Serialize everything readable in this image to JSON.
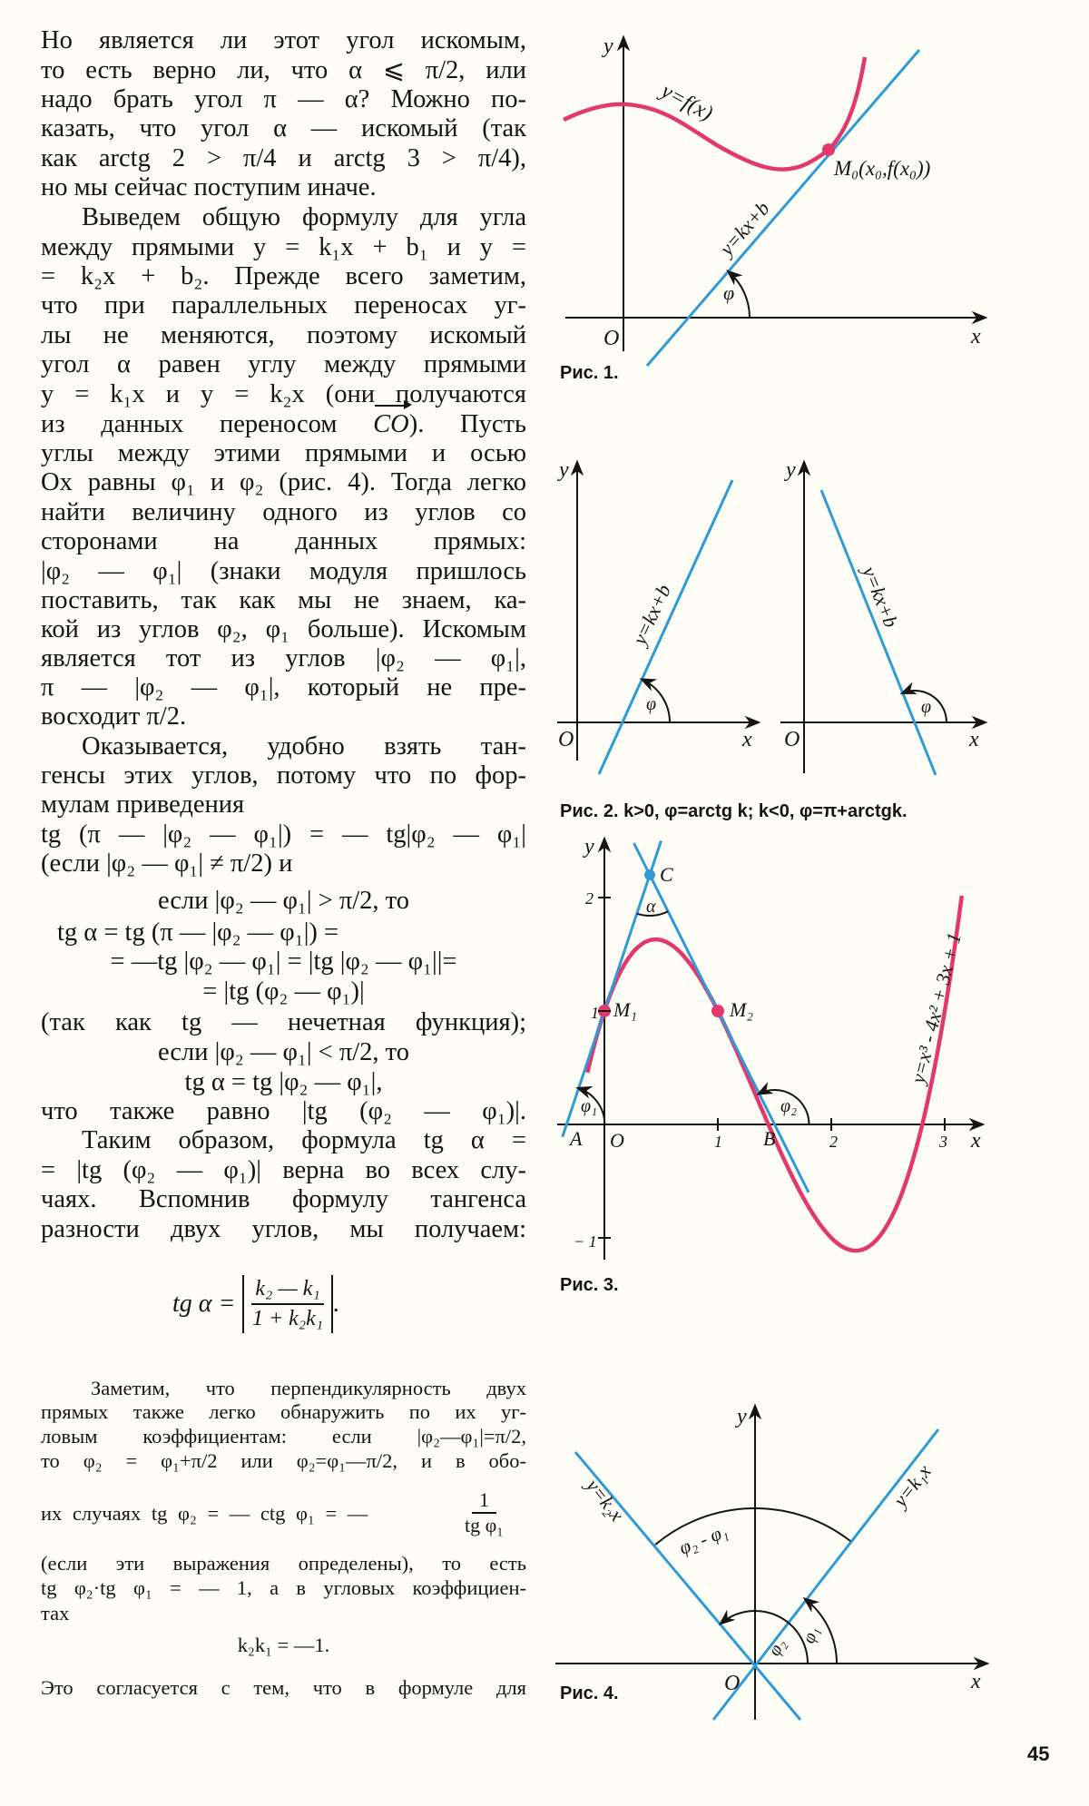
{
  "text": {
    "lines": [
      "Но является ли этот угол искомым,",
      "то есть верно ли, что α ⩽ π/2, или",
      "надо брать угол π — α? Можно по-",
      "казать, что угол α — искомый (так",
      "как arctg 2 > π/4 и arctg 3 > π/4),",
      "но мы сейчас поступим иначе.",
      "Выведем общую формулу для угла",
      "между прямыми y = k₁x + b₁ и y =",
      "= k₂x + b₂. Прежде всего заметим,",
      "что при параллельных переносах уг-",
      "лы не меняются, поэтому искомый",
      "угол α равен углу между прямыми",
      "y = k₁x и y = k₂x (они получаются",
      "из данных переносом",
      "углы между этими прямыми и осью",
      "Ox равны φ₁ и φ₂ (рис. 4). Тогда легко",
      "найти величину одного из углов со",
      "сторонами на данных прямых:",
      "|φ₂ — φ₁| (знаки модуля пришлось",
      "поставить, так как мы не знаем, ка-",
      "кой из углов φ₂, φ₁ больше). Искомым",
      "является тот из углов |φ₂ — φ₁|,",
      "π — |φ₂ — φ₁|, который не пре-",
      "восходит π/2.",
      "Оказывается, удобно взять тан-",
      "генсы этих углов, потому что по фор-",
      "мулам приведения",
      "tg (π — |φ₂ — φ₁|) = — tg|φ₂ — φ₁|",
      "(если |φ₂ — φ₁| ≠ π/2) и",
      "если |φ₂ — φ₁| > π/2, то",
      "tg α = tg (π — |φ₂ — φ₁|) =",
      "= —tg |φ₂ — φ₁| = |tg |φ₂ — φ₁||=",
      "= |tg (φ₂ — φ₁)|",
      "(так как tg — нечетная функция);",
      "если |φ₂ — φ₁| < π/2, то",
      "tg α = tg |φ₂ — φ₁|,",
      "что также равно |tg (φ₂ — φ₁)|.",
      "Таким образом, формула tg α =",
      "= |tg (φ₂ — φ₁)| верна во всех слу-",
      "чаях. Вспомнив формулу тангенса",
      "разности двух углов, мы получаем:"
    ],
    "vector_label": "CO",
    "vector_tail": "). Пусть",
    "main_formula": {
      "lhs": "tg α =",
      "num": "k₂ — k₁",
      "den": "1 + k₂k₁",
      "tail": "."
    },
    "small_lines": [
      "Заметим, что перпендикулярность двух",
      "прямых также легко обнаружить по их уг-",
      "ловым коэффициентам: если |φ₂—φ₁|=π/2,",
      "то φ₂ = φ₁+π/2 или φ₂=φ₁—π/2, и в обо-",
      "их случаях tg φ₂ = — ctg φ₁ = —",
      "(если эти выражения определены), то есть",
      "tg φ₂·tg φ₁ = — 1, а в угловых коэффициен-",
      "тах",
      "k₂k₁ = —1.",
      "Это согласуется с тем, что в формуле для"
    ],
    "small_fraction": {
      "num": "1",
      "den": "tg φ₁"
    }
  },
  "figures": {
    "fig1": {
      "caption": "Рис. 1.",
      "y": "y",
      "x": "x",
      "o": "O",
      "curve": "y=f(x)",
      "line": "y=kx+b",
      "point": "M₀(x₀,f(x₀))",
      "angle": "φ"
    },
    "fig2": {
      "caption": "Рис. 2. k>0, φ=arctg k; k<0, φ=π+arctgk.",
      "y": "y",
      "x": "x",
      "o": "O",
      "line": "y=kx+b",
      "angle": "φ"
    },
    "fig3": {
      "caption": "Рис. 3.",
      "y": "y",
      "x": "x",
      "o": "O",
      "curve": "y=x³ - 4x² + 3x + 1",
      "points": {
        "a": "A",
        "b": "B",
        "c": "C",
        "m1": "M₁",
        "m2": "M₂"
      },
      "angles": {
        "alpha": "α",
        "phi1": "φ₁",
        "phi2": "φ₂"
      },
      "xticks": [
        "1",
        "2",
        "3"
      ],
      "yticks": [
        "2",
        "1",
        "− 1"
      ]
    },
    "fig4": {
      "caption": "Рис. 4.",
      "y": "y",
      "x": "x",
      "o": "O",
      "line1": "y=k₁x",
      "line2": "y=k₂x",
      "diff": "φ₂ - φ₁",
      "phi1": "φ₁",
      "phi2": "φ₂"
    }
  },
  "colors": {
    "line_blue": "#2f9bd6",
    "curve_red": "#e2386f",
    "ink": "#161412",
    "paper": "#fdfcf5"
  },
  "page_number": "45"
}
